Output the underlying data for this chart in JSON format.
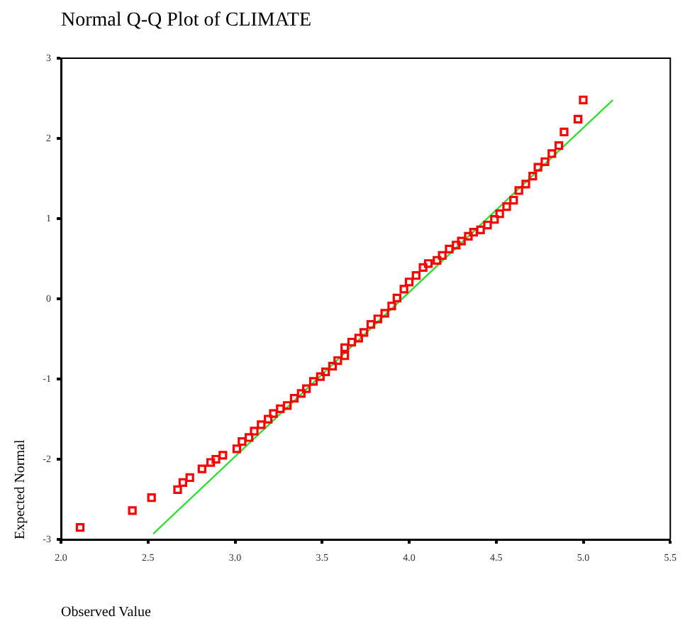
{
  "chart_data": {
    "type": "scatter",
    "title": "Normal Q-Q Plot of CLIMATE",
    "xlabel": "Observed Value",
    "ylabel": "Expected Normal",
    "xlim": [
      2,
      5.5
    ],
    "xticks": [
      {
        "value": 2,
        "label": "2.0"
      },
      {
        "value": 2.5,
        "label": "2.5"
      },
      {
        "value": 3,
        "label": "3.0"
      },
      {
        "value": 3.5,
        "label": "3.5"
      },
      {
        "value": 4,
        "label": "4.0"
      },
      {
        "value": 4.5,
        "label": "4.5"
      },
      {
        "value": 5,
        "label": "5.0"
      },
      {
        "value": 5.5,
        "label": "5.5"
      }
    ],
    "ylim": [
      -3,
      3
    ],
    "yticks": [
      -3,
      -2,
      -1,
      0,
      1,
      2,
      3
    ],
    "grid": false,
    "legend": false,
    "series": [
      {
        "marker": "square",
        "color": "#ff0000",
        "x": [
          2.11,
          2.41,
          2.52,
          2.67,
          2.7,
          2.74,
          2.81,
          2.86,
          2.89,
          2.93,
          3.01,
          3.04,
          3.08,
          3.11,
          3.15,
          3.19,
          3.22,
          3.26,
          3.3,
          3.34,
          3.38,
          3.41,
          3.45,
          3.49,
          3.52,
          3.56,
          3.59,
          3.63,
          3.63,
          3.67,
          3.71,
          3.74,
          3.78,
          3.82,
          3.86,
          3.9,
          3.93,
          3.97,
          4.0,
          4.04,
          4.08,
          4.11,
          4.16,
          4.19,
          4.23,
          4.27,
          4.3,
          4.34,
          4.37,
          4.41,
          4.45,
          4.49,
          4.52,
          4.56,
          4.6,
          4.63,
          4.67,
          4.71,
          4.74,
          4.78,
          4.82,
          4.86,
          4.89,
          4.97,
          5.0
        ],
        "values": [
          -2.85,
          -2.64,
          -2.48,
          -2.38,
          -2.29,
          -2.23,
          -2.12,
          -2.04,
          -2.0,
          -1.95,
          -1.87,
          -1.78,
          -1.73,
          -1.65,
          -1.57,
          -1.5,
          -1.43,
          -1.37,
          -1.33,
          -1.24,
          -1.18,
          -1.12,
          -1.03,
          -0.97,
          -0.91,
          -0.84,
          -0.77,
          -0.71,
          -0.61,
          -0.54,
          -0.49,
          -0.42,
          -0.32,
          -0.25,
          -0.18,
          -0.09,
          0.01,
          0.12,
          0.21,
          0.29,
          0.39,
          0.44,
          0.48,
          0.54,
          0.62,
          0.67,
          0.72,
          0.78,
          0.83,
          0.86,
          0.92,
          0.99,
          1.06,
          1.15,
          1.23,
          1.35,
          1.43,
          1.53,
          1.64,
          1.71,
          1.81,
          1.91,
          2.08,
          2.24,
          2.48
        ]
      },
      {
        "type": "line",
        "marker": "none",
        "line_style": "solid",
        "color": "#33dd33",
        "x": [
          2.53,
          5.17
        ],
        "values": [
          -2.93,
          2.48
        ]
      }
    ]
  }
}
